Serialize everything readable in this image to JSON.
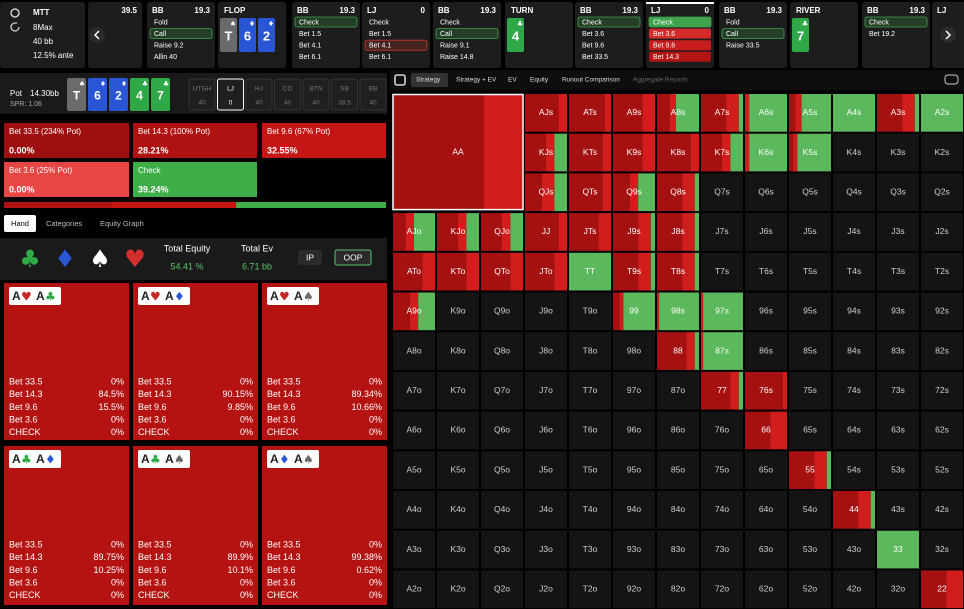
{
  "header": {
    "format": "MTT",
    "table": "8Max",
    "stack": "40 bb",
    "ante": "12.5% ante"
  },
  "suit_colors": {
    "♠": "#6b6b6b",
    "♦": "#2a55d4",
    "♣": "#2fa847",
    "♥": "#c62828"
  },
  "history": [
    {
      "stack": "39.5"
    },
    {
      "pos": "BB",
      "stack": "19.3",
      "actions": [
        "Fold",
        "Call",
        "Raise 9.2",
        "Allin 40"
      ],
      "selected": 1,
      "selected_color": "#3fa34d"
    },
    {
      "street": "FLOP",
      "cards": [
        {
          "rank": "T",
          "suit": "♠"
        },
        {
          "rank": "6",
          "suit": "♦"
        },
        {
          "rank": "2",
          "suit": "♦"
        }
      ]
    },
    {
      "pos": "BB",
      "stack": "19.3",
      "actions": [
        "Check",
        "Bet 1.5",
        "Bet 4.1",
        "Bet 6.1"
      ],
      "selected": 0,
      "selected_color": "#3fa34d"
    },
    {
      "pos": "LJ",
      "stack": "0",
      "actions": [
        "Check",
        "Bet 1.5",
        "Bet 4.1",
        "Bet 6.1"
      ],
      "selected": 2,
      "selected_color": "#c0392b"
    },
    {
      "pos": "BB",
      "stack": "19.3",
      "actions": [
        "Check",
        "Call",
        "Raise 9.1",
        "Raise 14.8"
      ],
      "selected": 1,
      "selected_color": "#3fa34d"
    },
    {
      "street": "TURN",
      "cards": [
        {
          "rank": "4",
          "suit": "♣"
        }
      ]
    },
    {
      "pos": "BB",
      "stack": "19.3",
      "actions": [
        "Check",
        "Bet 3.6",
        "Bet 9.6",
        "Bet 33.5"
      ],
      "selected": 0,
      "selected_color": "#3fa34d"
    },
    {
      "pos": "LJ",
      "stack": "0",
      "actions": [
        "Check",
        "Bet 3.6",
        "Bet 9.6",
        "Bet 14.3"
      ],
      "selected": 0,
      "selected_color": "#3fa34d",
      "active": true,
      "action_colors": [
        "#3fa34d",
        "#d42a2a",
        "#c81d1d",
        "#b31414"
      ]
    },
    {
      "pos": "BB",
      "stack": "19.3",
      "actions": [
        "Fold",
        "Call",
        "Raise 33.5"
      ],
      "selected": 1,
      "selected_color": "#3fa34d"
    },
    {
      "street": "RIVER",
      "cards": [
        {
          "rank": "7",
          "suit": "♣"
        }
      ]
    },
    {
      "pos": "BB",
      "stack": "19.3",
      "actions": [
        "Check",
        "Bet 19.2"
      ],
      "selected": 0,
      "selected_color": "#3fa34d"
    },
    {
      "pos": "LJ"
    }
  ],
  "board": {
    "pot_label": "Pot",
    "pot": "14.30bb",
    "spr": "SPR: 1.06",
    "cards": [
      {
        "rank": "T",
        "suit": "♠"
      },
      {
        "rank": "6",
        "suit": "♦"
      },
      {
        "rank": "2",
        "suit": "♦"
      },
      {
        "rank": "4",
        "suit": "♣"
      },
      {
        "rank": "7",
        "suit": "♣"
      }
    ],
    "positions": [
      {
        "name": "UTGH",
        "stack": "40"
      },
      {
        "name": "LJ",
        "stack": "0",
        "active": true
      },
      {
        "name": "HJ",
        "stack": "40"
      },
      {
        "name": "CO",
        "stack": "40"
      },
      {
        "name": "BTN",
        "stack": "40"
      },
      {
        "name": "SB",
        "stack": "38.5"
      },
      {
        "name": "BB",
        "stack": "40"
      }
    ]
  },
  "actions": [
    {
      "label": "Bet 33.5 (234% Pot)",
      "share": 0,
      "share_label": "0.00%",
      "color": "#9e0f0f"
    },
    {
      "label": "Bet 14.3 (100% Pot)",
      "share": 28.21,
      "share_label": "28.21%",
      "color": "#b01111"
    },
    {
      "label": "Bet 9.6 (67% Pot)",
      "share": 32.55,
      "share_label": "32.55%",
      "color": "#c51616"
    },
    {
      "label": "Bet 3.6 (25% Pot)",
      "share": 0,
      "share_label": "0.00%",
      "color": "#e84545"
    },
    {
      "label": "Check",
      "share": 39.24,
      "share_label": "39.24%",
      "color": "#3fae49"
    }
  ],
  "tabs": [
    "Hand",
    "Categories",
    "Equity Graph"
  ],
  "suit_filter": [
    {
      "suit": "♣",
      "color": "#2fa847"
    },
    {
      "suit": "♦",
      "color": "#2a55d4"
    },
    {
      "suit": "♠",
      "color": "#ffffff"
    },
    {
      "suit": "♥",
      "color": "#d32f2f"
    }
  ],
  "totals": {
    "equity_label": "Total Equity",
    "equity": "54.41 %",
    "ev_label": "Total Ev",
    "ev": "6.71 bb",
    "ip": "IP",
    "oop": "OOP"
  },
  "combo_rows": [
    "Bet 33.5",
    "Bet 14.3",
    "Bet 9.6",
    "Bet 3.6",
    "CHECK"
  ],
  "combos": [
    {
      "cards": [
        {
          "rank": "A",
          "suit": "♥"
        },
        {
          "rank": "A",
          "suit": "♣"
        }
      ],
      "values": [
        "0%",
        "84.5%",
        "15.5%",
        "0%",
        "0%"
      ]
    },
    {
      "cards": [
        {
          "rank": "A",
          "suit": "♥"
        },
        {
          "rank": "A",
          "suit": "♦"
        }
      ],
      "values": [
        "0%",
        "90.15%",
        "9.85%",
        "0%",
        "0%"
      ]
    },
    {
      "cards": [
        {
          "rank": "A",
          "suit": "♥"
        },
        {
          "rank": "A",
          "suit": "♠"
        }
      ],
      "values": [
        "0%",
        "89.34%",
        "10.66%",
        "0%",
        "0%"
      ]
    },
    {
      "cards": [
        {
          "rank": "A",
          "suit": "♣"
        },
        {
          "rank": "A",
          "suit": "♦"
        }
      ],
      "values": [
        "0%",
        "89.75%",
        "10.25%",
        "0%",
        "0%"
      ]
    },
    {
      "cards": [
        {
          "rank": "A",
          "suit": "♣"
        },
        {
          "rank": "A",
          "suit": "♠"
        }
      ],
      "values": [
        "0%",
        "89.9%",
        "10.1%",
        "0%",
        "0%"
      ]
    },
    {
      "cards": [
        {
          "rank": "A",
          "suit": "♦"
        },
        {
          "rank": "A",
          "suit": "♠"
        }
      ],
      "values": [
        "0%",
        "99.38%",
        "0.62%",
        "0%",
        "0%"
      ]
    }
  ],
  "toolbar": [
    "Strategy",
    "Strategy + EV",
    "EV",
    "Equity",
    "Runout Comparison",
    "Aggregate Reports"
  ],
  "grid": {
    "mix_colors": [
      "#a51010",
      "#d21d1d",
      "#5cb85c"
    ],
    "labels": [
      [
        "AA",
        null,
        null,
        "AJs",
        "ATs",
        "A9s",
        "A8s",
        "A7s",
        "A6s",
        "A5s",
        "A4s",
        "A3s",
        "A2s"
      ],
      [
        null,
        null,
        null,
        "KJs",
        "KTs",
        "K9s",
        "K8s",
        "K7s",
        "K6s",
        "K5s",
        "K4s",
        "K3s",
        "K2s"
      ],
      [
        null,
        null,
        null,
        "QJs",
        "QTs",
        "Q9s",
        "Q8s",
        "Q7s",
        "Q6s",
        "Q5s",
        "Q4s",
        "Q3s",
        "Q2s"
      ],
      [
        "AJo",
        "KJo",
        "QJo",
        "JJ",
        "JTs",
        "J9s",
        "J8s",
        "J7s",
        "J6s",
        "J5s",
        "J4s",
        "J3s",
        "J2s"
      ],
      [
        "ATo",
        "KTo",
        "QTo",
        "JTo",
        "TT",
        "T9s",
        "T8s",
        "T7s",
        "T6s",
        "T5s",
        "T4s",
        "T3s",
        "T2s"
      ],
      [
        "A9o",
        "K9o",
        "Q9o",
        "J9o",
        "T9o",
        "99",
        "98s",
        "97s",
        "96s",
        "95s",
        "94s",
        "93s",
        "92s"
      ],
      [
        "A8o",
        "K8o",
        "Q8o",
        "J8o",
        "T8o",
        "98o",
        "88",
        "87s",
        "86s",
        "85s",
        "84s",
        "83s",
        "82s"
      ],
      [
        "A7o",
        "K7o",
        "Q7o",
        "J7o",
        "T7o",
        "97o",
        "87o",
        "77",
        "76s",
        "75s",
        "74s",
        "73s",
        "72s"
      ],
      [
        "A6o",
        "K6o",
        "Q6o",
        "J6o",
        "T6o",
        "96o",
        "86o",
        "76o",
        "66",
        "65s",
        "64s",
        "63s",
        "62s"
      ],
      [
        "A5o",
        "K5o",
        "Q5o",
        "J5o",
        "T5o",
        "95o",
        "85o",
        "75o",
        "65o",
        "55",
        "54s",
        "53s",
        "52s"
      ],
      [
        "A4o",
        "K4o",
        "Q4o",
        "J4o",
        "T4o",
        "94o",
        "84o",
        "74o",
        "64o",
        "54o",
        "44",
        "43s",
        "42s"
      ],
      [
        "A3o",
        "K3o",
        "Q3o",
        "J3o",
        "T3o",
        "93o",
        "83o",
        "73o",
        "63o",
        "53o",
        "43o",
        "33",
        "32s"
      ],
      [
        "A2o",
        "K2o",
        "Q2o",
        "J2o",
        "T2o",
        "92o",
        "82o",
        "72o",
        "62o",
        "52o",
        "42o",
        "32o",
        "22"
      ]
    ],
    "mix": [
      [
        [
          70,
          30,
          0
        ],
        null,
        null,
        [
          80,
          20,
          0
        ],
        [
          85,
          15,
          0
        ],
        [
          70,
          30,
          0
        ],
        [
          30,
          15,
          55
        ],
        [
          60,
          30,
          10
        ],
        [
          0,
          10,
          90
        ],
        [
          15,
          15,
          70
        ],
        [
          0,
          0,
          100
        ],
        [
          60,
          30,
          10
        ],
        [
          0,
          0,
          100
        ]
      ],
      [
        null,
        null,
        null,
        [
          50,
          20,
          30
        ],
        [
          80,
          20,
          0
        ],
        [
          70,
          30,
          0
        ],
        [
          80,
          20,
          0
        ],
        [
          50,
          20,
          30
        ],
        [
          0,
          10,
          90
        ],
        [
          10,
          10,
          80
        ],
        null,
        null,
        null
      ],
      [
        null,
        null,
        null,
        [
          40,
          30,
          30
        ],
        [
          80,
          20,
          0
        ],
        [
          40,
          20,
          40
        ],
        [
          60,
          30,
          10
        ],
        null,
        null,
        null,
        null,
        null,
        null
      ],
      [
        [
          30,
          20,
          50
        ],
        [
          50,
          20,
          30
        ],
        [
          50,
          20,
          30
        ],
        [
          80,
          20,
          0
        ],
        [
          70,
          30,
          0
        ],
        [
          60,
          30,
          10
        ],
        [
          60,
          30,
          10
        ],
        null,
        null,
        null,
        null,
        null,
        null
      ],
      [
        [
          70,
          30,
          0
        ],
        [
          70,
          30,
          0
        ],
        [
          70,
          30,
          0
        ],
        [
          70,
          30,
          0
        ],
        [
          0,
          0,
          100
        ],
        [
          60,
          30,
          10
        ],
        [
          60,
          30,
          10
        ],
        null,
        null,
        null,
        null,
        null,
        null
      ],
      [
        [
          40,
          20,
          40
        ],
        null,
        null,
        null,
        null,
        [
          15,
          10,
          75
        ],
        [
          0,
          5,
          95
        ],
        [
          0,
          5,
          95
        ],
        null,
        null,
        null,
        null,
        null
      ],
      [
        null,
        null,
        null,
        null,
        null,
        null,
        [
          70,
          20,
          10
        ],
        [
          0,
          5,
          95
        ],
        null,
        null,
        null,
        null,
        null
      ],
      [
        null,
        null,
        null,
        null,
        null,
        null,
        null,
        [
          70,
          20,
          10
        ],
        [
          90,
          10,
          0
        ],
        null,
        null,
        null,
        null
      ],
      [
        null,
        null,
        null,
        null,
        null,
        null,
        null,
        null,
        [
          60,
          40,
          0
        ],
        null,
        null,
        null,
        null
      ],
      [
        null,
        null,
        null,
        null,
        null,
        null,
        null,
        null,
        null,
        [
          60,
          30,
          10
        ],
        null,
        null,
        null
      ],
      [
        null,
        null,
        null,
        null,
        null,
        null,
        null,
        null,
        null,
        null,
        [
          60,
          30,
          10
        ],
        null,
        null
      ],
      [
        null,
        null,
        null,
        null,
        null,
        null,
        null,
        null,
        null,
        null,
        null,
        [
          0,
          0,
          100
        ],
        null
      ],
      [
        null,
        null,
        null,
        null,
        null,
        null,
        null,
        null,
        null,
        null,
        null,
        null,
        [
          60,
          40,
          0
        ]
      ]
    ]
  }
}
